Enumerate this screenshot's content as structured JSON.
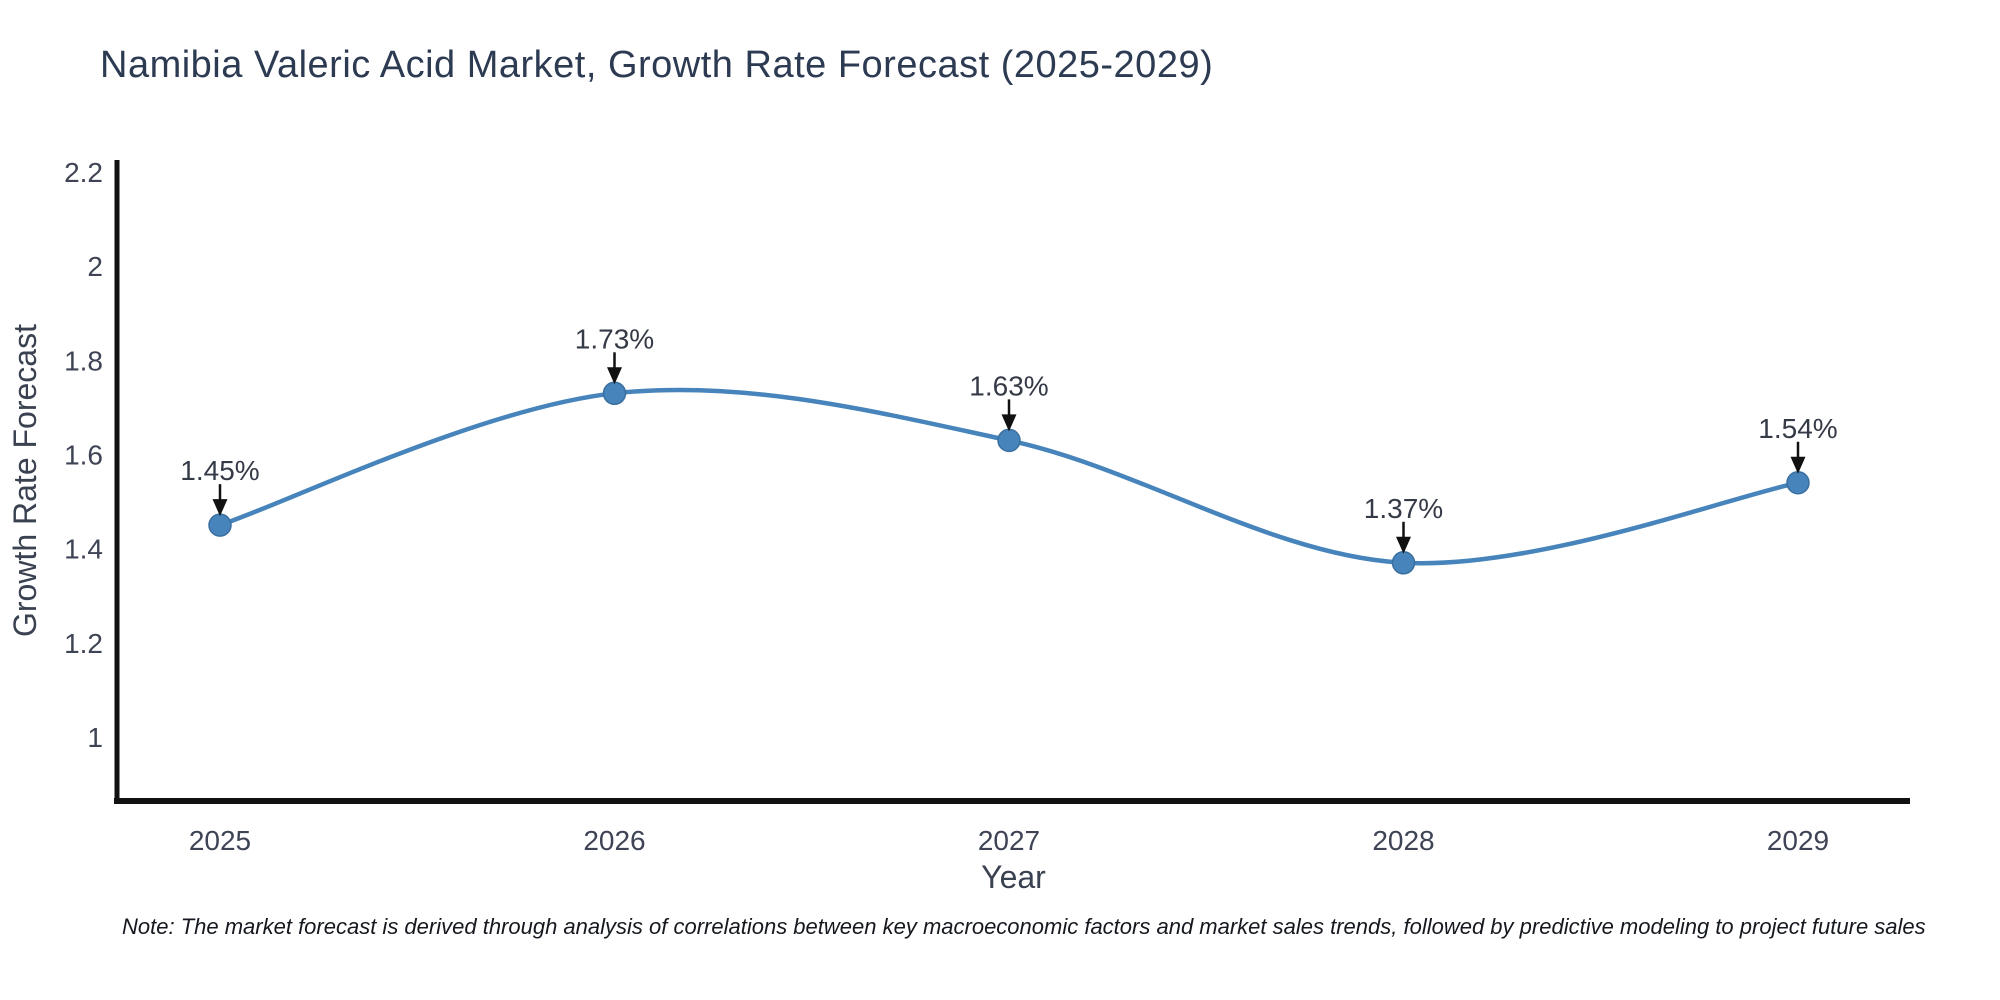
{
  "chart_data": {
    "type": "line",
    "title": "Namibia Valeric Acid Market, Growth Rate Forecast (2025-2029)",
    "xlabel": "Year",
    "ylabel": "Growth Rate Forecast",
    "categories": [
      "2025",
      "2026",
      "2027",
      "2028",
      "2029"
    ],
    "series": [
      {
        "name": "Growth Rate Forecast",
        "values": [
          1.45,
          1.73,
          1.63,
          1.37,
          1.54
        ]
      }
    ],
    "point_labels": [
      "1.45%",
      "1.73%",
      "1.63%",
      "1.37%",
      "1.54%"
    ],
    "yticks": [
      "2.2",
      "2",
      "1.8",
      "1.6",
      "1.4",
      "1.2",
      "1"
    ],
    "ytick_values": [
      2.2,
      2,
      1.8,
      1.6,
      1.4,
      1.2,
      1
    ],
    "ylim": [
      0.87,
      2.23
    ],
    "grid": false,
    "legend": "none",
    "line_shape": "spline",
    "colors": {
      "line": "#4684bb",
      "marker": "#4684bb",
      "marker_edge": "#3a6f9f",
      "axis": "#111111",
      "tick_text": "#3e4455",
      "axis_title_text": "#3a4150",
      "annotation_text": "#353a47",
      "annotation_arrow": "#111111",
      "title_text": "#2c3a52"
    },
    "note": "Note: The market forecast is derived through analysis of correlations between key macroeconomic factors and market sales trends, followed by predictive modeling to project future sales"
  }
}
